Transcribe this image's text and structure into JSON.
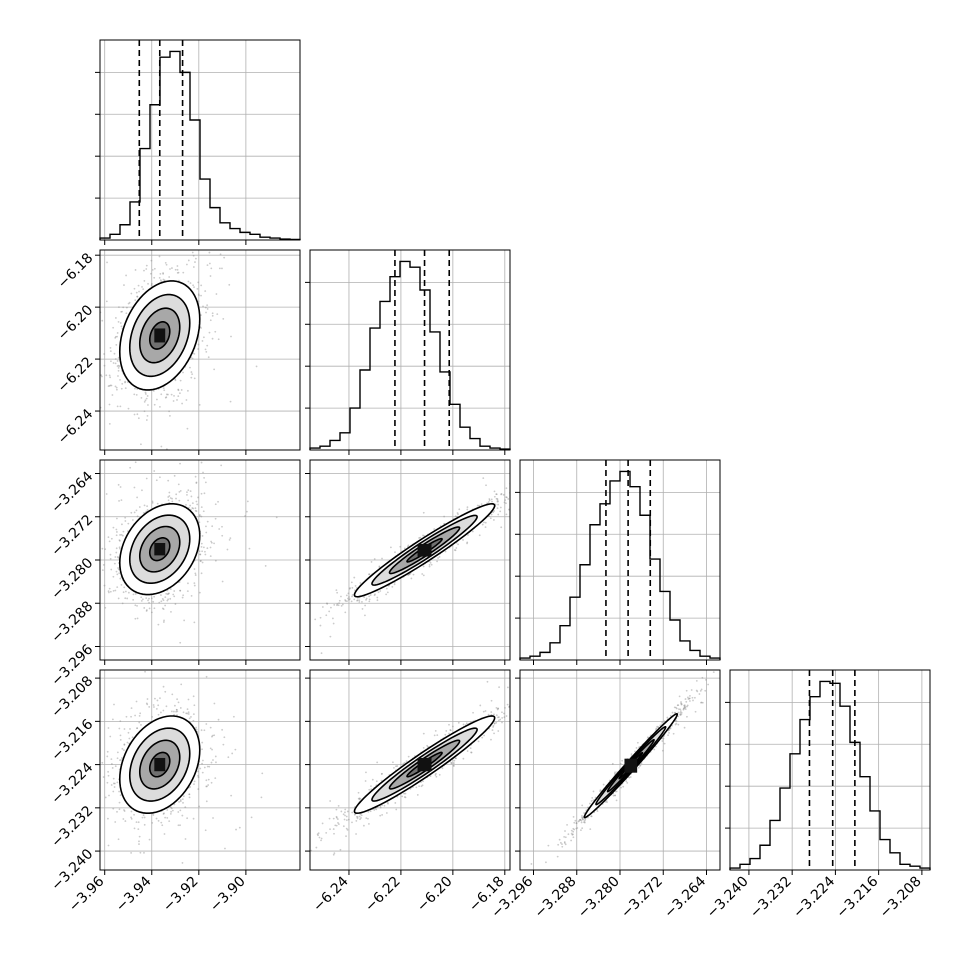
{
  "chart_data": {
    "type": "corner",
    "parameters": [
      {
        "ticks": [
          -3.96,
          -3.94,
          -3.92,
          -3.9
        ],
        "tick_labels": [
          "−3.96",
          "−3.94",
          "−3.92",
          "−3.90"
        ],
        "range": [
          -3.962,
          -3.877
        ]
      },
      {
        "ticks": [
          -6.24,
          -6.22,
          -6.2,
          -6.18
        ],
        "tick_labels": [
          "−6.24",
          "−6.22",
          "−6.20",
          "−6.18"
        ],
        "range": [
          -6.255,
          -6.178
        ]
      },
      {
        "ticks": [
          -3.296,
          -3.288,
          -3.28,
          -3.272,
          -3.264
        ],
        "tick_labels": [
          "−3.296",
          "−3.288",
          "−3.280",
          "−3.272",
          "−3.264"
        ],
        "range": [
          -3.2985,
          -3.2615
        ]
      },
      {
        "ticks": [
          -3.24,
          -3.232,
          -3.224,
          -3.216,
          -3.208
        ],
        "tick_labels": [
          "−3.240",
          "−3.232",
          "−3.224",
          "−3.216",
          "−3.208"
        ],
        "range": [
          -3.2435,
          -3.2065
        ]
      }
    ],
    "histograms": [
      {
        "counts": [
          0.01,
          0.03,
          0.08,
          0.2,
          0.48,
          0.71,
          0.96,
          0.99,
          0.88,
          0.63,
          0.32,
          0.17,
          0.09,
          0.06,
          0.04,
          0.03,
          0.015,
          0.01,
          0.005,
          0.003
        ],
        "quantiles": [
          -3.9453,
          -3.9366,
          -3.9269
        ]
      },
      {
        "counts": [
          0.01,
          0.02,
          0.05,
          0.09,
          0.22,
          0.42,
          0.64,
          0.78,
          0.91,
          0.99,
          0.96,
          0.84,
          0.62,
          0.41,
          0.24,
          0.12,
          0.06,
          0.02,
          0.01,
          0.005
        ],
        "quantiles": [
          -6.2223,
          -6.2109,
          -6.2014
        ]
      },
      {
        "counts": [
          0.01,
          0.02,
          0.04,
          0.09,
          0.18,
          0.33,
          0.5,
          0.71,
          0.82,
          0.94,
          0.99,
          0.91,
          0.76,
          0.53,
          0.36,
          0.21,
          0.1,
          0.05,
          0.02,
          0.01
        ],
        "quantiles": [
          -3.2826,
          -3.2785,
          -3.2744
        ]
      },
      {
        "counts": [
          0.01,
          0.03,
          0.06,
          0.13,
          0.26,
          0.43,
          0.61,
          0.79,
          0.91,
          0.99,
          0.98,
          0.86,
          0.67,
          0.49,
          0.31,
          0.16,
          0.09,
          0.03,
          0.02,
          0.01
        ],
        "quantiles": [
          -3.2288,
          -3.2245,
          -3.2204
        ]
      }
    ],
    "joint": [
      {
        "row": 1,
        "col": 0,
        "mean": [
          -3.9366,
          -6.2109
        ],
        "sd": [
          0.0085,
          0.0105
        ],
        "corr": 0.3
      },
      {
        "row": 2,
        "col": 0,
        "mean": [
          -3.9366,
          -3.278
        ],
        "sd": [
          0.0085,
          0.0042
        ],
        "corr": 0.3
      },
      {
        "row": 2,
        "col": 1,
        "mean": [
          -6.2109,
          -3.2782
        ],
        "sd": [
          0.0135,
          0.0043
        ],
        "corr": 0.96
      },
      {
        "row": 3,
        "col": 0,
        "mean": [
          -3.9366,
          -3.224
        ],
        "sd": [
          0.0085,
          0.0045
        ],
        "corr": 0.3
      },
      {
        "row": 3,
        "col": 1,
        "mean": [
          -6.2109,
          -3.224
        ],
        "sd": [
          0.0135,
          0.0045
        ],
        "corr": 0.96
      },
      {
        "row": 3,
        "col": 2,
        "mean": [
          -3.278,
          -3.2242
        ],
        "sd": [
          0.0043,
          0.0048
        ],
        "corr": 0.99
      }
    ],
    "contour_levels_sigma": [
      0.5,
      1.0,
      1.5,
      2.0
    ],
    "grid": true
  }
}
